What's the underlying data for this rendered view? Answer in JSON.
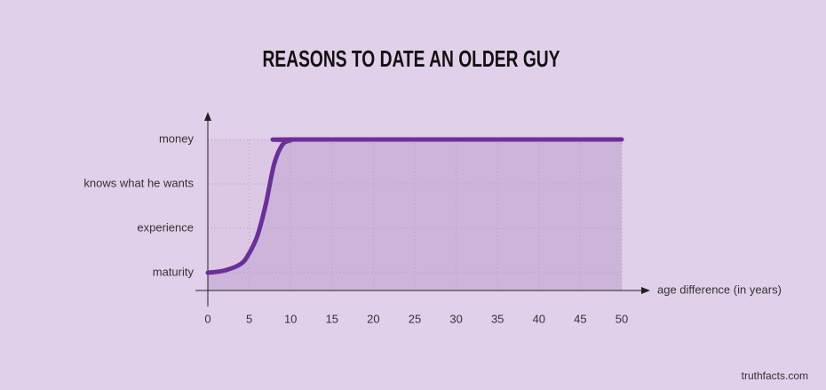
{
  "chart_data": {
    "type": "line",
    "title": "REASONS TO DATE AN OLDER GUY",
    "xlabel": "age difference (in years)",
    "source": "truthfacts.com",
    "x": [
      0,
      2,
      4,
      5,
      6,
      7,
      8,
      9,
      10,
      11,
      50
    ],
    "series": [
      {
        "color": "#6b2f97",
        "fill": "#cdb4da",
        "values": [
          1,
          1.05,
          1.2,
          1.44,
          1.84,
          2.54,
          3.44,
          3.88,
          3.98,
          4,
          4
        ]
      }
    ],
    "xlim": [
      0,
      50
    ],
    "xticks": [
      0,
      5,
      10,
      15,
      20,
      25,
      30,
      35,
      40,
      45,
      50
    ],
    "ylim": [
      0.6,
      4.5
    ],
    "yticks": [
      {
        "value": 1,
        "label": "maturity"
      },
      {
        "value": 2,
        "label": "experience"
      },
      {
        "value": 3,
        "label": "knows what he wants"
      },
      {
        "value": 4,
        "label": "money"
      }
    ],
    "grid": true
  }
}
